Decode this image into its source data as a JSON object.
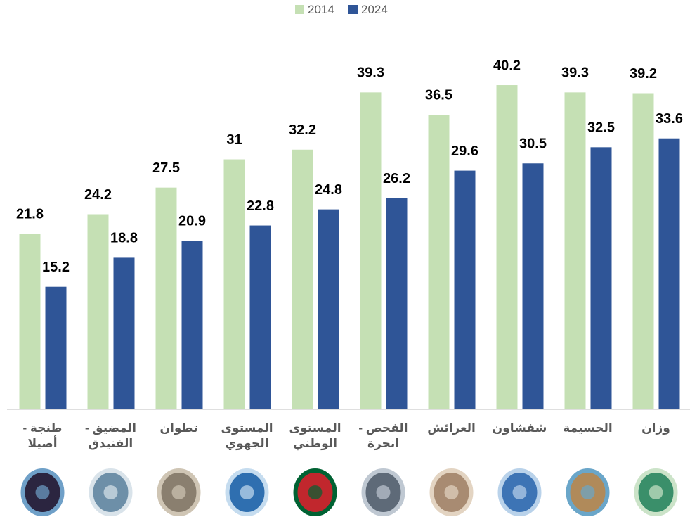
{
  "chart_data": {
    "type": "bar",
    "categories": [
      "طنجة - أصيلا",
      "المضيق - الفنيدق",
      "تطوان",
      "المستوى الجهوي",
      "المستوى الوطني",
      "الفحص - انجرة",
      "العرائش",
      "شفشاون",
      "الحسيمة",
      "وزان"
    ],
    "series": [
      {
        "name": "2014",
        "color": "#c5e0b4",
        "values": [
          21.8,
          24.2,
          27.5,
          31,
          32.2,
          39.3,
          36.5,
          40.2,
          39.3,
          39.2
        ]
      },
      {
        "name": "2024",
        "color": "#2f5597",
        "values": [
          15.2,
          18.8,
          20.9,
          22.8,
          24.8,
          26.2,
          29.6,
          30.5,
          32.5,
          33.6
        ]
      }
    ],
    "ylim": [
      0,
      45
    ],
    "legend": "top"
  }
}
